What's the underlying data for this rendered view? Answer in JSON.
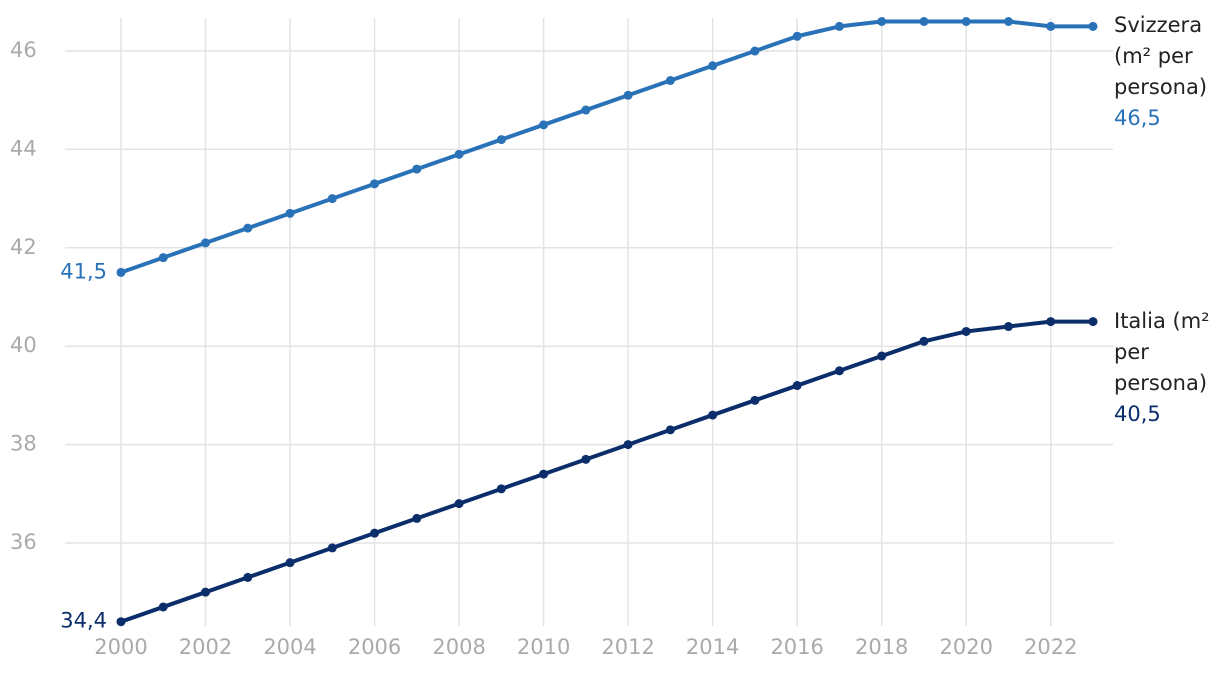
{
  "chart_data": {
    "type": "line",
    "x": [
      2000,
      2001,
      2002,
      2003,
      2004,
      2005,
      2006,
      2007,
      2008,
      2009,
      2010,
      2011,
      2012,
      2013,
      2014,
      2015,
      2016,
      2017,
      2018,
      2019,
      2020,
      2021,
      2022,
      2023
    ],
    "series": [
      {
        "name": "Svizzera (m² per persona)",
        "color": "#2a72b8",
        "values": [
          41.5,
          41.8,
          42.1,
          42.4,
          42.7,
          43.0,
          43.3,
          43.6,
          43.9,
          44.2,
          44.5,
          44.8,
          45.1,
          45.4,
          45.7,
          46.0,
          46.3,
          46.5,
          46.6,
          46.6,
          46.6,
          46.6,
          46.5,
          46.5
        ],
        "value_labels": [
          "41,5",
          null,
          null,
          null,
          null,
          null,
          null,
          null,
          null,
          null,
          null,
          null,
          null,
          null,
          null,
          null,
          null,
          null,
          null,
          null,
          null,
          null,
          null,
          "46,5"
        ]
      },
      {
        "name": "Italia (m² per persona)",
        "color": "#0b2e6b",
        "values": [
          34.4,
          34.7,
          35.0,
          35.3,
          35.6,
          35.9,
          36.2,
          36.5,
          36.8,
          37.1,
          37.4,
          37.7,
          38.0,
          38.3,
          38.6,
          38.9,
          39.2,
          39.5,
          39.8,
          40.1,
          40.3,
          40.4,
          40.5,
          40.5
        ],
        "value_labels": [
          "34,4",
          null,
          null,
          null,
          null,
          null,
          null,
          null,
          null,
          null,
          null,
          null,
          null,
          null,
          null,
          null,
          null,
          null,
          null,
          null,
          null,
          null,
          null,
          "40,5"
        ]
      }
    ],
    "xlim": [
      2000,
      2023
    ],
    "xticks": [
      2000,
      2002,
      2004,
      2006,
      2008,
      2010,
      2012,
      2014,
      2016,
      2018,
      2020,
      2022
    ],
    "ylim": [
      34.4,
      46.6
    ],
    "yticks": [
      36,
      38,
      40,
      42,
      44,
      46
    ],
    "grid": true
  }
}
